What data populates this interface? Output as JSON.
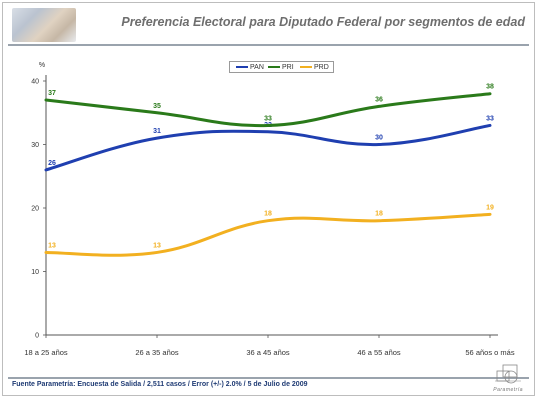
{
  "header": {
    "title": "Preferencia Electoral para Diputado Federal por segmentos de edad"
  },
  "footer": {
    "source": "Fuente Parametría: Encuesta de Salida / 2,511 casos / Error (+/-) 2.0% / 5 de Julio de 2009",
    "logo_text": "Parametría"
  },
  "colors": {
    "PAN": "#1f3fb0",
    "PRI": "#2a7a1a",
    "PRD": "#f2b020"
  },
  "chart_data": {
    "type": "line",
    "title": "Preferencia Electoral para Diputado Federal por segmentos de edad",
    "ylabel": "%",
    "xlabel": "",
    "categories": [
      "18 a 25 años",
      "26 a 35 años",
      "36 a 45 años",
      "46 a 55 años",
      "56 años o más"
    ],
    "ylim": [
      0,
      40
    ],
    "yticks": [
      0,
      10,
      20,
      30,
      40
    ],
    "grid": false,
    "legend": "top-center",
    "series": [
      {
        "name": "PAN",
        "values": [
          26,
          31,
          32,
          30,
          33
        ]
      },
      {
        "name": "PRI",
        "values": [
          37,
          35,
          33,
          36,
          38
        ]
      },
      {
        "name": "PRD",
        "values": [
          13,
          13,
          18,
          18,
          19
        ]
      }
    ]
  }
}
